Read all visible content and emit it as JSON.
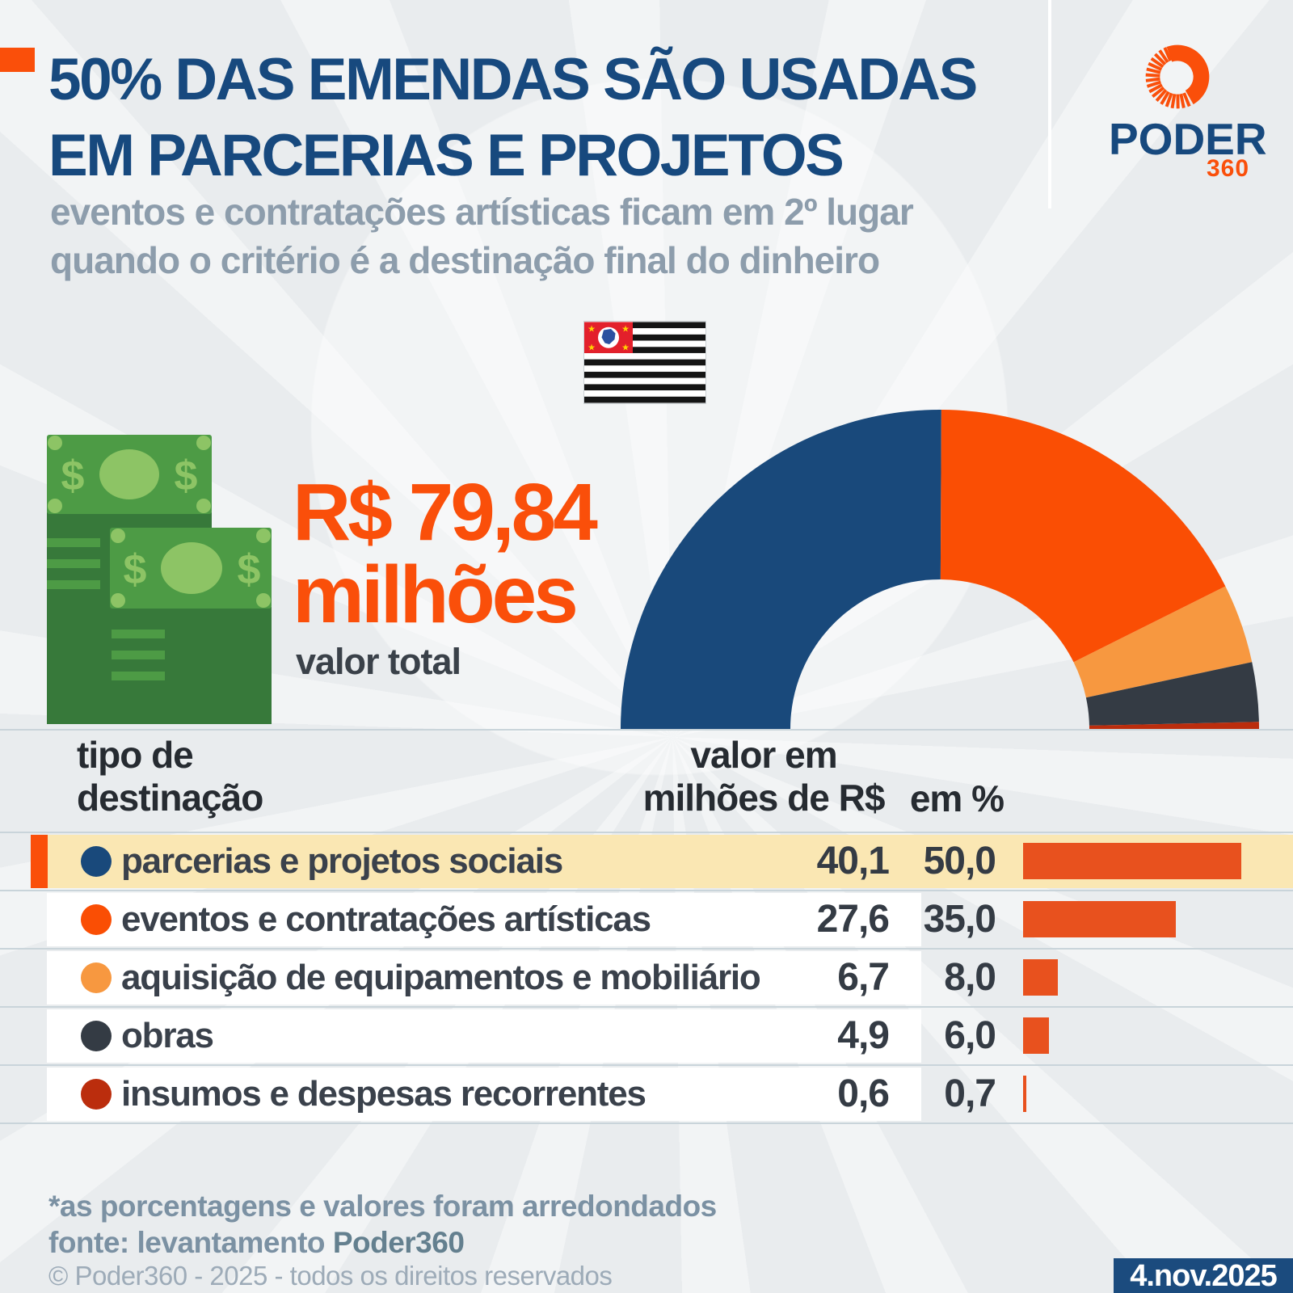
{
  "colors": {
    "background": "#e9ecee",
    "brand_orange": "#fa4f0a",
    "navy": "#17497e",
    "bar_orange": "#e8511e",
    "highlight_yellow": "#fae7b3",
    "badge_navy": "#1b4b7e",
    "separator": "#c9d4da"
  },
  "header": {
    "title_line1": "50% DAS EMENDAS SÃO USADAS",
    "title_line2": "EM PARCERIAS E PROJETOS",
    "subtitle_line1": "eventos e contratações artísticas ficam em 2º lugar",
    "subtitle_line2": "quando o critério é a destinação final do dinheiro"
  },
  "logo": {
    "wordmark": "PODER",
    "suffix": "360"
  },
  "total": {
    "value_line1": "R$ 79,84",
    "value_line2": "milhões",
    "caption": "valor total"
  },
  "table": {
    "headers": {
      "col1_line1": "tipo de",
      "col1_line2": "destinação",
      "col2_line1": "valor em",
      "col2_line2": "milhões de R$",
      "col3": "em %"
    },
    "rows": [
      {
        "label": "parcerias e projetos sociais",
        "valor": "40,1",
        "pct": "50,0"
      },
      {
        "label": "eventos e contratações artísticas",
        "valor": "27,6",
        "pct": "35,0"
      },
      {
        "label": "aquisição de equipamentos e mobiliário",
        "valor": "6,7",
        "pct": "8,0"
      },
      {
        "label": "obras",
        "valor": "4,9",
        "pct": "6,0"
      },
      {
        "label": "insumos e despesas recorrentes",
        "valor": "0,6",
        "pct": "0,7"
      }
    ]
  },
  "footer": {
    "note": "*as porcentagens e valores foram arredondados",
    "source_prefix": "fonte: levantamento ",
    "source_name": "Poder360",
    "copyright": "© Poder360 - 2025 - todos os direitos reservados",
    "date": "4.nov.2025"
  },
  "chart_data": {
    "type": "pie",
    "subtype": "half-donut",
    "title": "50% das emendas são usadas em parcerias e projetos",
    "total_label": "R$ 79,84 milhões (valor total)",
    "categories": [
      "parcerias e projetos sociais",
      "eventos e contratações artísticas",
      "aquisição de equipamentos e mobiliário",
      "obras",
      "insumos e despesas recorrentes"
    ],
    "series": [
      {
        "name": "valor em milhões de R$",
        "values": [
          40.1,
          27.6,
          6.7,
          4.9,
          0.6
        ]
      },
      {
        "name": "em %",
        "values": [
          50.0,
          35.0,
          8.0,
          6.0,
          0.7
        ]
      }
    ],
    "colors": [
      "#19497b",
      "#fa4e04",
      "#f79840",
      "#343b44",
      "#bb2d0d"
    ],
    "legend_position": "table-below-left",
    "note": "*as porcentagens e valores foram arredondados"
  }
}
